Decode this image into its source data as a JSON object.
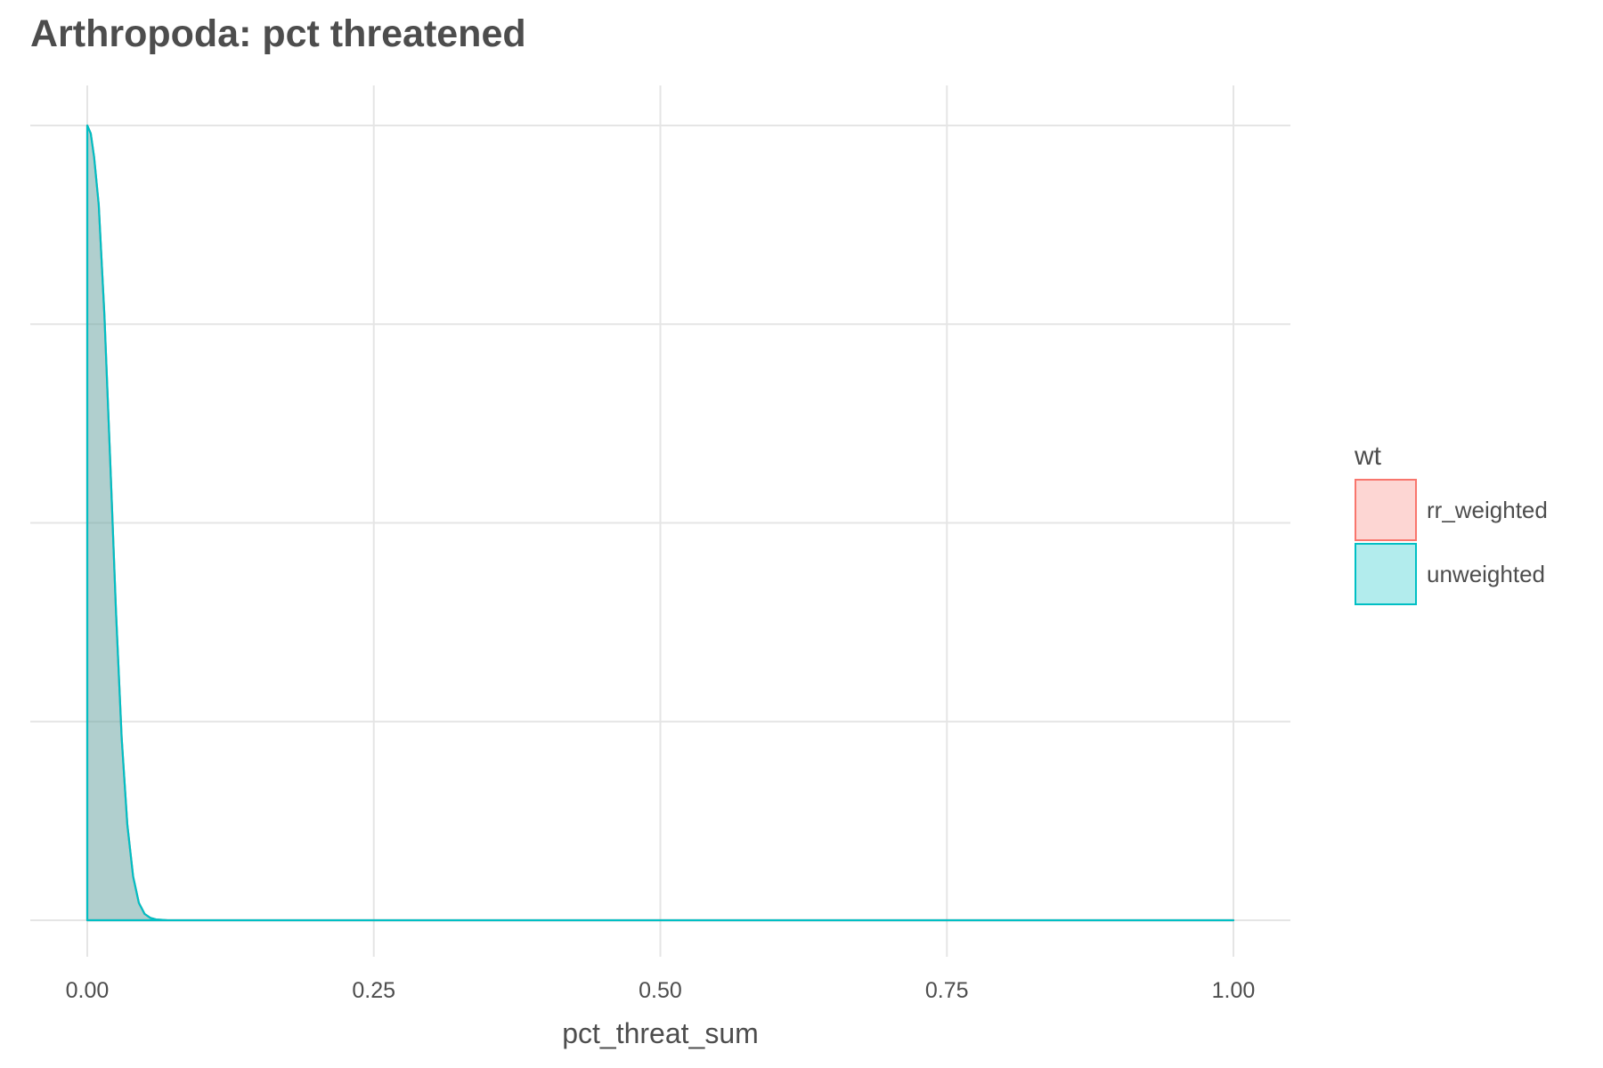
{
  "chart_data": {
    "type": "area",
    "subtype": "density",
    "title": "Arthropoda: pct threatened",
    "xlabel": "pct_threat_sum",
    "ylabel": "",
    "xlim": [
      0,
      1
    ],
    "x_ticks": [
      0,
      0.25,
      0.5,
      0.75,
      1
    ],
    "x_tick_labels": [
      "0.00",
      "0.25",
      "0.50",
      "0.75",
      "1.00"
    ],
    "y_ticks_shown": false,
    "grid": true,
    "legend": {
      "title": "wt",
      "position": "right",
      "entries": [
        "rr_weighted",
        "unweighted"
      ]
    },
    "series": [
      {
        "name": "rr_weighted",
        "color": "#F8766D",
        "fill": "#F8766D",
        "fill_opacity": 0.3,
        "x": [
          0,
          0.003,
          0.006,
          0.01,
          0.015,
          0.02,
          0.025,
          0.03,
          0.035,
          0.04,
          0.045,
          0.05,
          0.055,
          0.06,
          0.07,
          0.1,
          0.25,
          0.5,
          0.75,
          1.0
        ],
        "density": [
          1.0,
          0.99,
          0.96,
          0.9,
          0.76,
          0.58,
          0.39,
          0.23,
          0.12,
          0.055,
          0.022,
          0.008,
          0.003,
          0.001,
          0.0,
          0.0,
          0.0,
          0.0,
          0.0,
          0.0
        ]
      },
      {
        "name": "unweighted",
        "color": "#00BFC4",
        "fill": "#00BFC4",
        "fill_opacity": 0.3,
        "x": [
          0,
          0.003,
          0.006,
          0.01,
          0.015,
          0.02,
          0.025,
          0.03,
          0.035,
          0.04,
          0.045,
          0.05,
          0.055,
          0.06,
          0.07,
          0.1,
          0.25,
          0.5,
          0.75,
          1.0
        ],
        "density": [
          1.0,
          0.99,
          0.96,
          0.9,
          0.76,
          0.58,
          0.39,
          0.23,
          0.12,
          0.055,
          0.022,
          0.008,
          0.003,
          0.001,
          0.0,
          0.0,
          0.0,
          0.0,
          0.0,
          0.0
        ]
      }
    ]
  }
}
